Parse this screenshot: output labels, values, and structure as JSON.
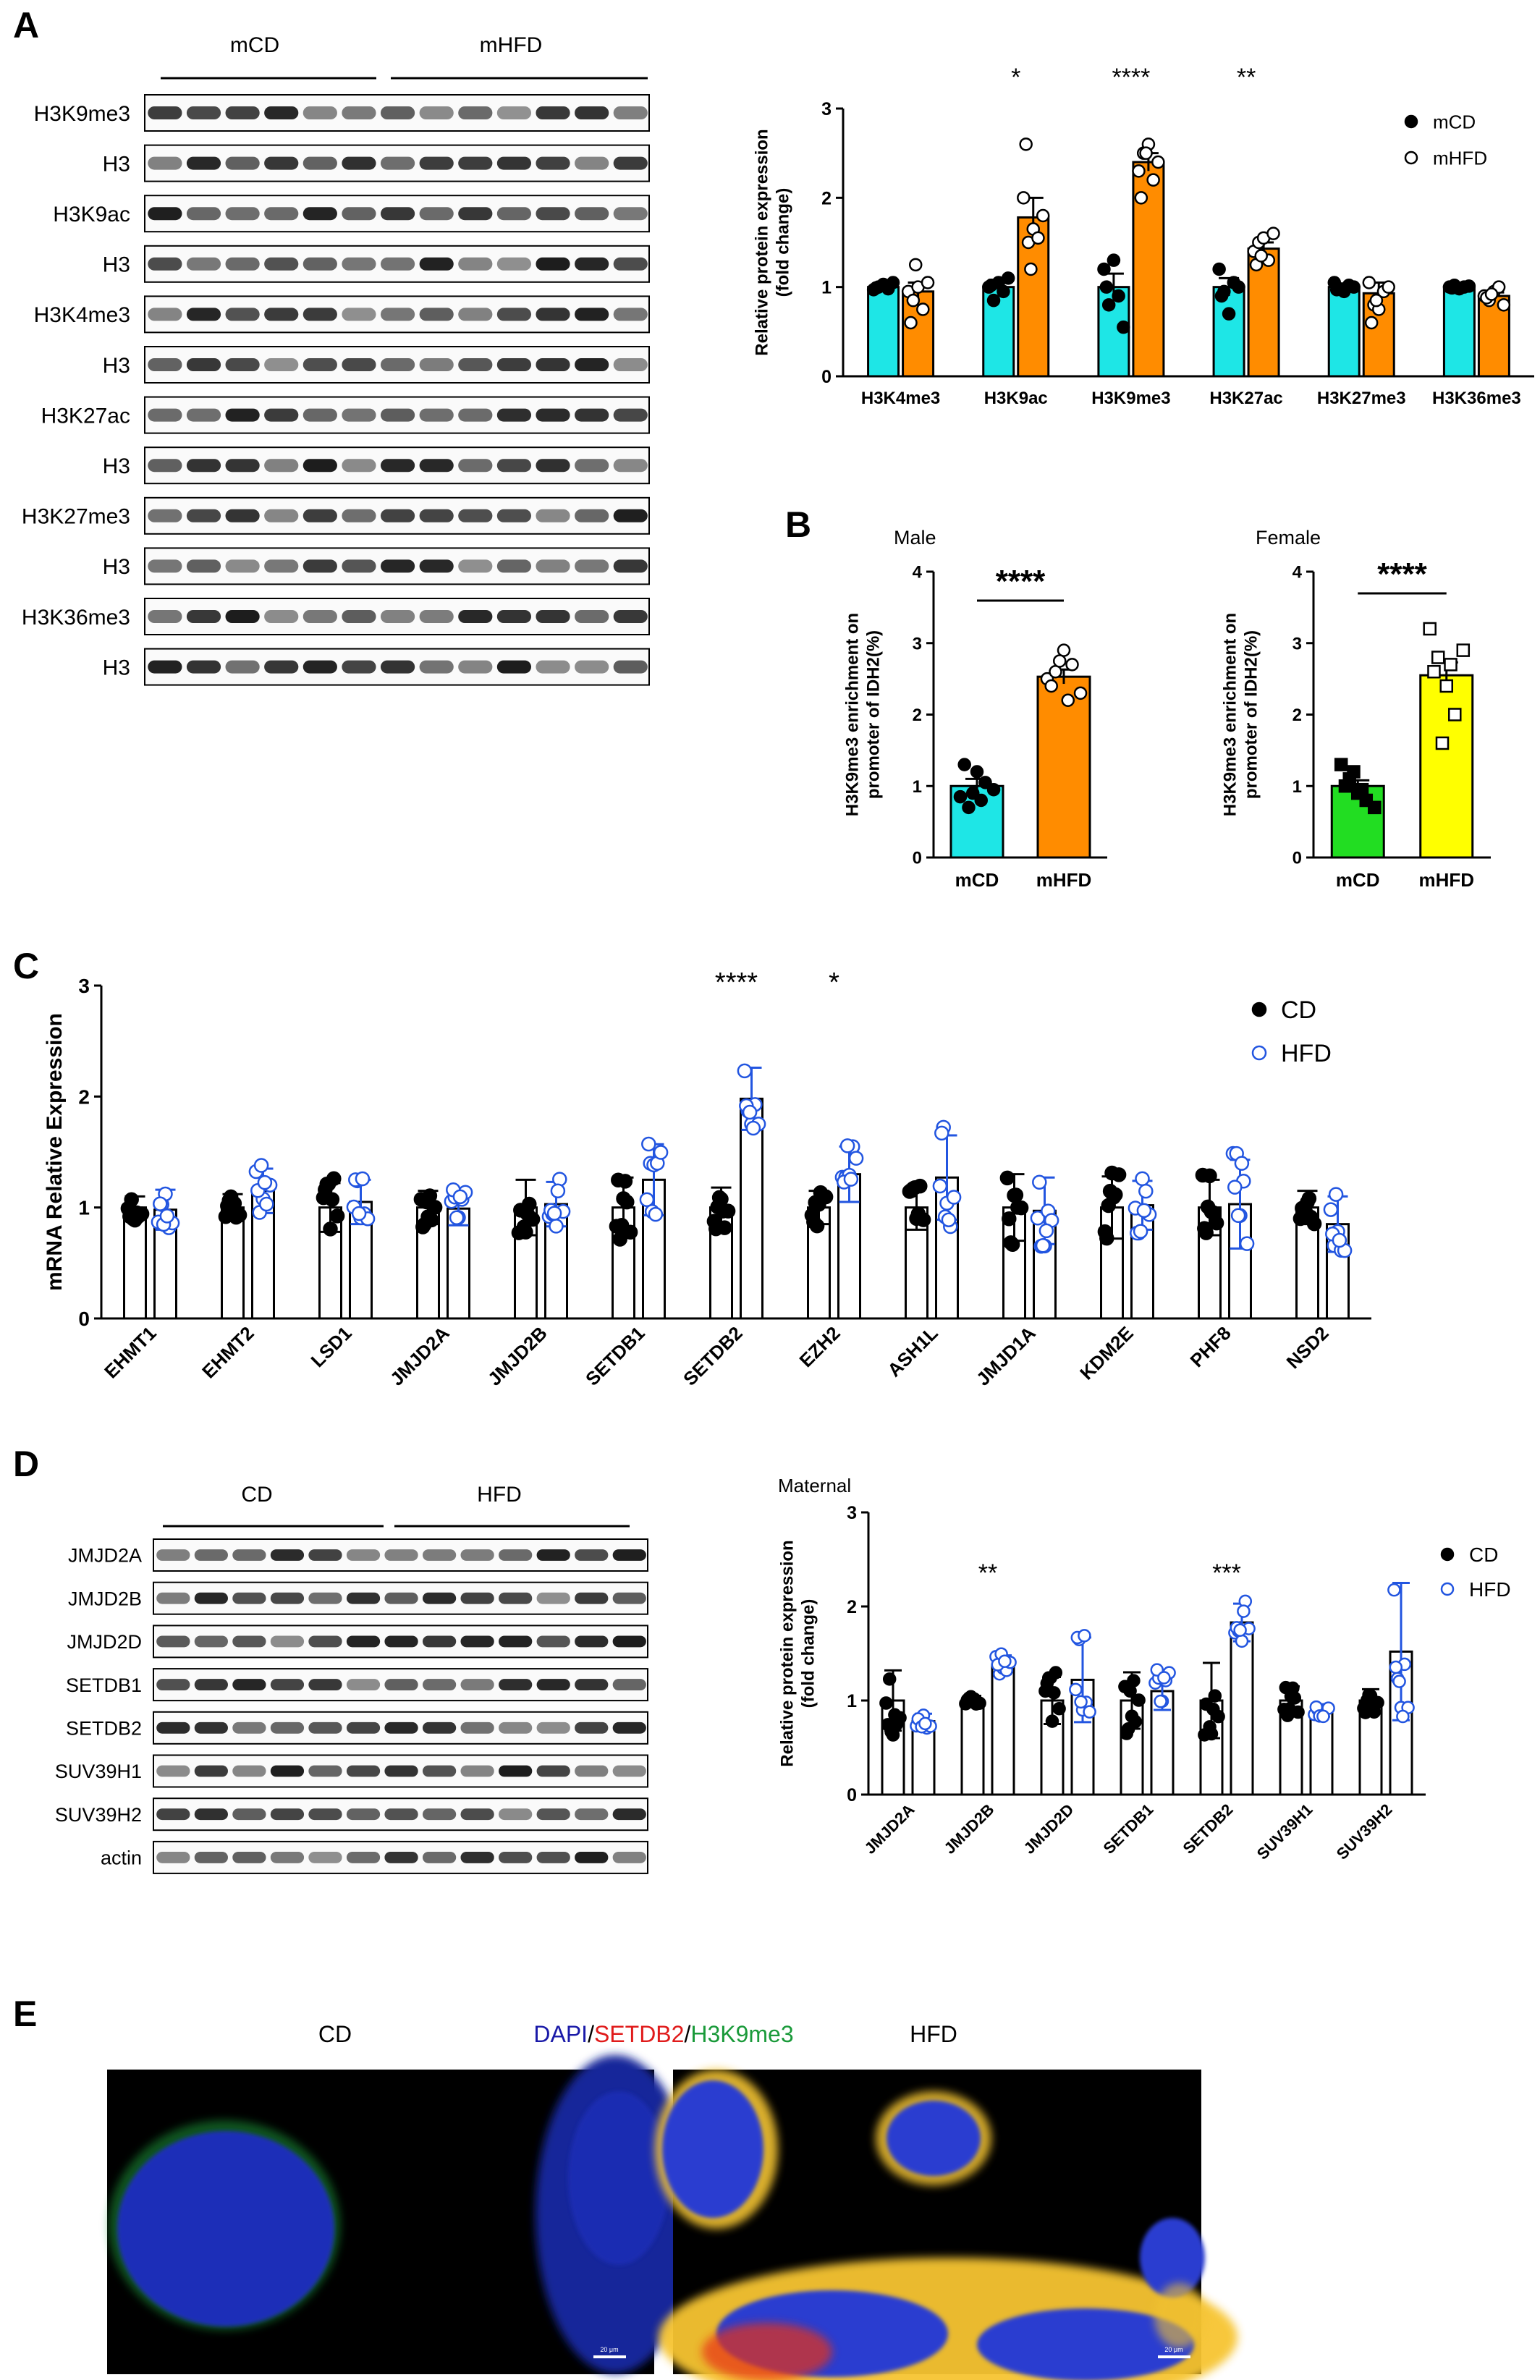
{
  "panels": {
    "A": "A",
    "B": "B",
    "C": "C",
    "D": "D",
    "E": "E"
  },
  "blotA": {
    "groups": [
      "mCD",
      "mHFD"
    ],
    "rows": [
      "H3K9me3",
      "H3",
      "H3K9ac",
      "H3",
      "H3K4me3",
      "H3",
      "H3K27ac",
      "H3",
      "H3K27me3",
      "H3",
      "H3K36me3",
      "H3"
    ]
  },
  "blotD": {
    "groups": [
      "CD",
      "HFD"
    ],
    "rows": [
      "JMJD2A",
      "JMJD2B",
      "JMJD2D",
      "SETDB1",
      "SETDB2",
      "SUV39H1",
      "SUV39H2",
      "actin"
    ]
  },
  "imageE": {
    "left_label": "CD",
    "right_label": "HFD",
    "stain": {
      "dapi": "DAPI",
      "sep1": "/",
      "setdb2": "SETDB2",
      "sep2": "/",
      "h3k9me3": "H3K9me3"
    },
    "scale_bar": "20 μm"
  },
  "colors": {
    "cyan": "#1ee6e6",
    "orange": "#ff8c00",
    "green": "#22dd22",
    "yellow": "#ffff00",
    "blue": "#2255e0",
    "dapi": "#1a1aa8",
    "setdb2": "#e01b1b",
    "h3k9me3": "#1a9a3a"
  },
  "chart_data": [
    {
      "id": "A",
      "type": "bar",
      "ylabel": "Relative protein expression\n(fold change)",
      "ylim": [
        0,
        3
      ],
      "yticks": [
        "0",
        "1",
        "2",
        "3"
      ],
      "categories": [
        "H3K4me3",
        "H3K9ac",
        "H3K9me3",
        "H3K27ac",
        "H3K27me3",
        "H3K36me3"
      ],
      "series": [
        {
          "name": "mCD",
          "values": [
            1.0,
            1.0,
            1.0,
            1.0,
            1.0,
            1.0
          ],
          "err": [
            0.03,
            0.08,
            0.15,
            0.1,
            0.04,
            0.02
          ],
          "points": [
            [
              0.97,
              1.0,
              1.03,
              0.98,
              1.05,
              0.99
            ],
            [
              1.0,
              0.85,
              1.05,
              0.95,
              1.1,
              1.02
            ],
            [
              1.2,
              0.8,
              1.3,
              0.9,
              0.55,
              1.0
            ],
            [
              1.2,
              0.95,
              0.7,
              1.05,
              1.0,
              0.9
            ],
            [
              1.05,
              0.98,
              0.95,
              1.02,
              1.0,
              0.97
            ],
            [
              1.0,
              1.02,
              0.98,
              1.0,
              1.01,
              0.99
            ]
          ]
        },
        {
          "name": "mHFD",
          "values": [
            0.95,
            1.78,
            2.4,
            1.43,
            0.93,
            0.9
          ],
          "err": [
            0.1,
            0.22,
            0.1,
            0.07,
            0.12,
            0.04
          ],
          "points": [
            [
              0.95,
              0.85,
              1.0,
              0.75,
              1.05,
              0.6,
              1.25
            ],
            [
              2.0,
              1.5,
              1.65,
              1.55,
              1.8,
              2.6,
              1.2
            ],
            [
              2.3,
              2.5,
              2.6,
              2.2,
              2.4,
              2.0,
              2.5
            ],
            [
              1.4,
              1.5,
              1.55,
              1.3,
              1.6,
              1.25,
              1.35
            ],
            [
              1.05,
              0.8,
              0.75,
              0.95,
              1.0,
              0.6,
              0.85
            ],
            [
              0.9,
              0.85,
              0.95,
              1.0,
              0.8,
              0.88,
              0.92
            ]
          ]
        }
      ],
      "significance": [
        "",
        "*",
        "****",
        "**",
        "",
        ""
      ],
      "legend": [
        "mCD",
        "mHFD"
      ],
      "legend_position": "top-right"
    },
    {
      "id": "B-male",
      "type": "bar",
      "title": "Male",
      "ylabel": "H3K9me3 enrichment on\npromoter of IDH2(%)",
      "ylim": [
        0,
        4
      ],
      "yticks": [
        "0",
        "1",
        "2",
        "3",
        "4"
      ],
      "categories": [
        "mCD",
        "mHFD"
      ],
      "values": [
        1.0,
        2.53
      ],
      "err": [
        0.1,
        0.1
      ],
      "points": [
        [
          0.85,
          0.7,
          1.2,
          1.05,
          0.95,
          1.3,
          0.9,
          0.8
        ],
        [
          2.5,
          2.6,
          2.9,
          2.7,
          2.3,
          2.4,
          2.75,
          2.2
        ]
      ],
      "significance": "****"
    },
    {
      "id": "B-female",
      "type": "bar",
      "title": "Female",
      "ylabel": "H3K9me3 enrichment on\npromoter of IDH2(%)",
      "ylim": [
        0,
        4
      ],
      "yticks": [
        "0",
        "1",
        "2",
        "3",
        "4"
      ],
      "categories": [
        "mCD",
        "mHFD"
      ],
      "values": [
        1.0,
        2.55
      ],
      "err": [
        0.08,
        0.18
      ],
      "points": [
        [
          1.3,
          1.1,
          0.9,
          0.8,
          0.7,
          1.0,
          1.2,
          0.95
        ],
        [
          3.2,
          2.8,
          2.4,
          2.0,
          2.9,
          2.6,
          1.6,
          2.7
        ]
      ],
      "significance": "****"
    },
    {
      "id": "C",
      "type": "bar",
      "ylabel": "mRNA Relative Expression",
      "ylim": [
        0,
        3
      ],
      "yticks": [
        "0",
        "1",
        "2",
        "3"
      ],
      "categories": [
        "EHMT1",
        "EHMT2",
        "LSD1",
        "JMJD2A",
        "JMJD2B",
        "SETDB1",
        "SETDB2",
        "EZH2",
        "ASH1L",
        "JMJD1A",
        "KDM2E",
        "PHF8",
        "NSD2"
      ],
      "series": [
        {
          "name": "CD",
          "values": [
            1.0,
            1.0,
            1.0,
            1.0,
            1.0,
            1.0,
            1.0,
            1.0,
            1.0,
            1.0,
            1.0,
            1.0,
            1.0
          ],
          "err": [
            0.1,
            0.12,
            0.22,
            0.15,
            0.25,
            0.27,
            0.18,
            0.15,
            0.2,
            0.3,
            0.28,
            0.25,
            0.15
          ]
        },
        {
          "name": "HFD",
          "values": [
            0.98,
            1.15,
            1.05,
            0.99,
            1.03,
            1.25,
            1.98,
            1.3,
            1.27,
            0.97,
            1.02,
            1.03,
            0.85
          ],
          "err": [
            0.18,
            0.2,
            0.2,
            0.15,
            0.2,
            0.32,
            0.28,
            0.25,
            0.38,
            0.3,
            0.22,
            0.4,
            0.25
          ]
        }
      ],
      "significance": [
        "",
        "",
        "",
        "",
        "",
        "",
        "****",
        "*",
        "",
        "",
        "",
        "",
        ""
      ],
      "legend": [
        "CD",
        "HFD"
      ],
      "legend_position": "top-right"
    },
    {
      "id": "D",
      "type": "bar",
      "title": "Maternal",
      "ylabel": "Relative protein expression\n(fold change)",
      "ylim": [
        0,
        3
      ],
      "yticks": [
        "0",
        "1",
        "2",
        "3"
      ],
      "categories": [
        "JMJD2A",
        "JMJD2B",
        "JMJD2D",
        "SETDB1",
        "SETDB2",
        "SUV39H1",
        "SUV39H2"
      ],
      "series": [
        {
          "name": "CD",
          "values": [
            1.0,
            1.0,
            1.0,
            1.0,
            1.0,
            1.0,
            1.0
          ],
          "err": [
            0.32,
            0.05,
            0.25,
            0.3,
            0.4,
            0.15,
            0.12
          ]
        },
        {
          "name": "HFD",
          "values": [
            0.78,
            1.38,
            1.22,
            1.1,
            1.83,
            0.88,
            1.52
          ],
          "err": [
            0.08,
            0.1,
            0.45,
            0.2,
            0.2,
            0.05,
            0.73
          ]
        }
      ],
      "significance": [
        "",
        "**",
        "",
        "",
        "***",
        "",
        ""
      ],
      "legend": [
        "CD",
        "HFD"
      ],
      "legend_position": "top-right"
    }
  ]
}
